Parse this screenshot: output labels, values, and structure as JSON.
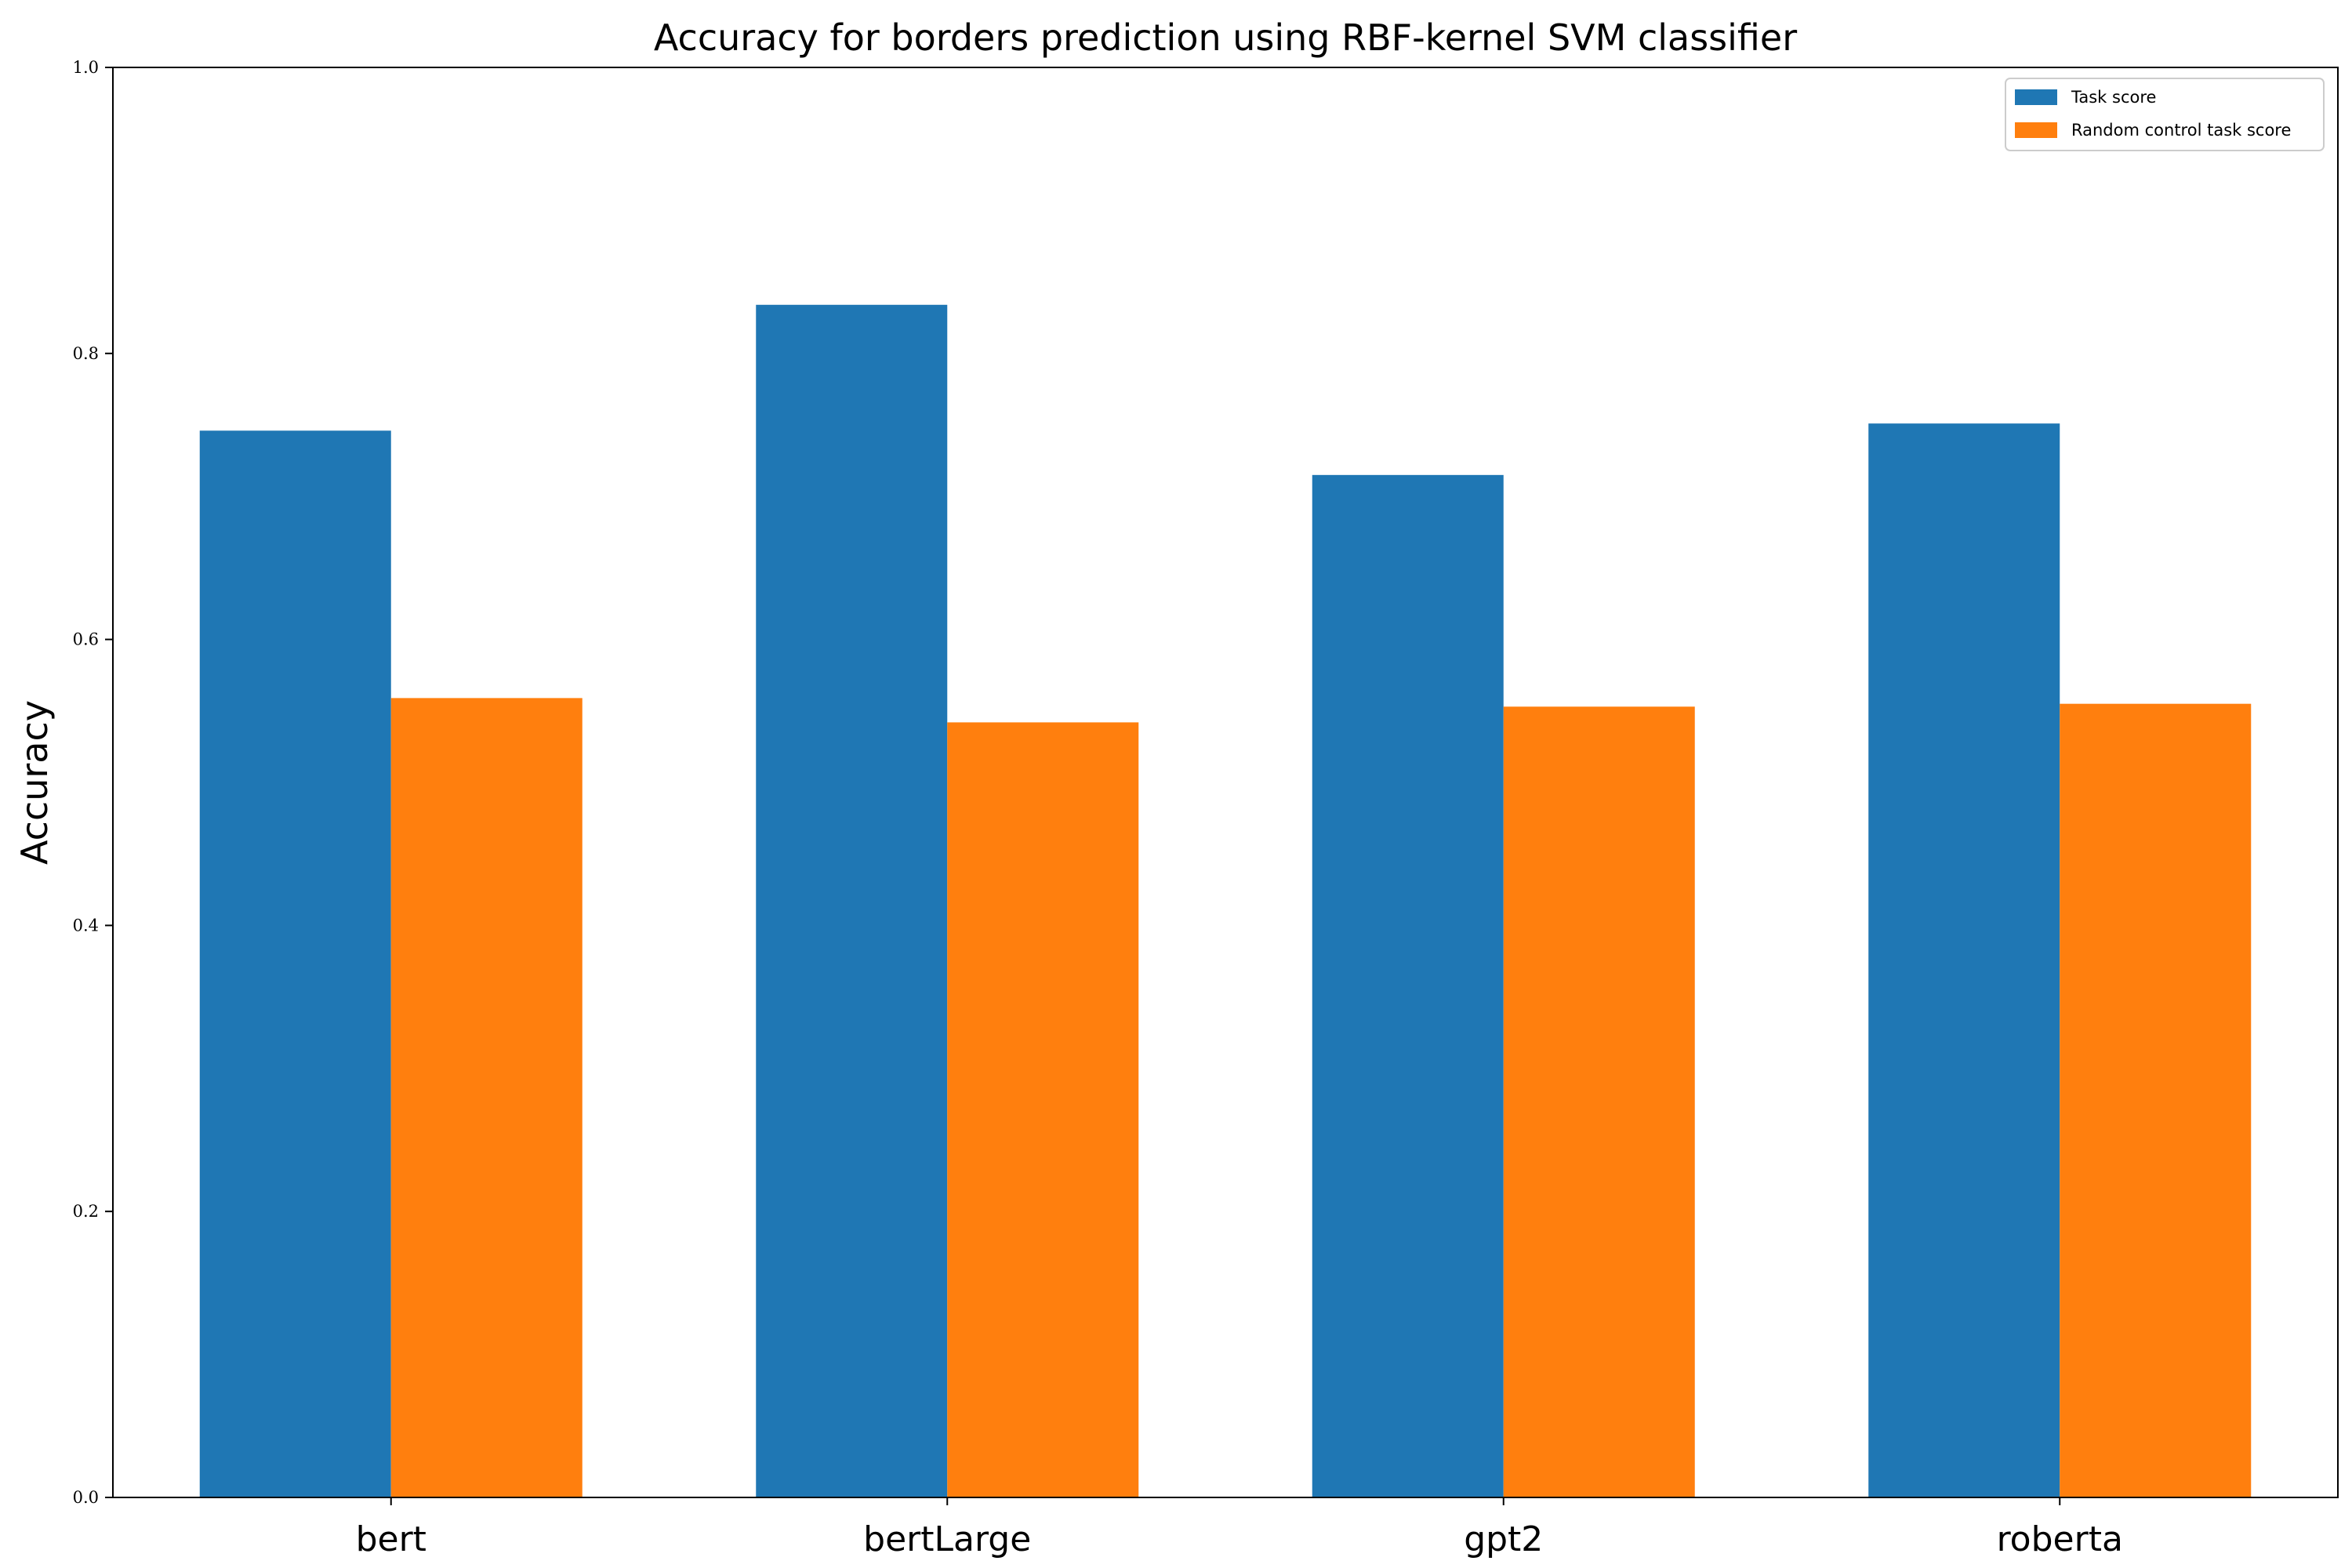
{
  "chart_data": {
    "type": "bar",
    "title": "Accuracy for borders prediction using RBF-kernel SVM classifier",
    "xlabel": "",
    "ylabel": "Accuracy",
    "ylim": [
      0,
      1.0
    ],
    "yticks": [
      "0.0",
      "0.2",
      "0.4",
      "0.6",
      "0.8",
      "1.0"
    ],
    "categories": [
      "bert",
      "bertLarge",
      "gpt2",
      "roberta"
    ],
    "series": [
      {
        "name": "Task score",
        "color": "#1f77b4",
        "values": [
          0.746,
          0.834,
          0.715,
          0.751
        ]
      },
      {
        "name": "Random control task score",
        "color": "#ff7f0e",
        "values": [
          0.559,
          0.542,
          0.553,
          0.555
        ]
      }
    ],
    "legend": "top-right",
    "grid": false
  }
}
